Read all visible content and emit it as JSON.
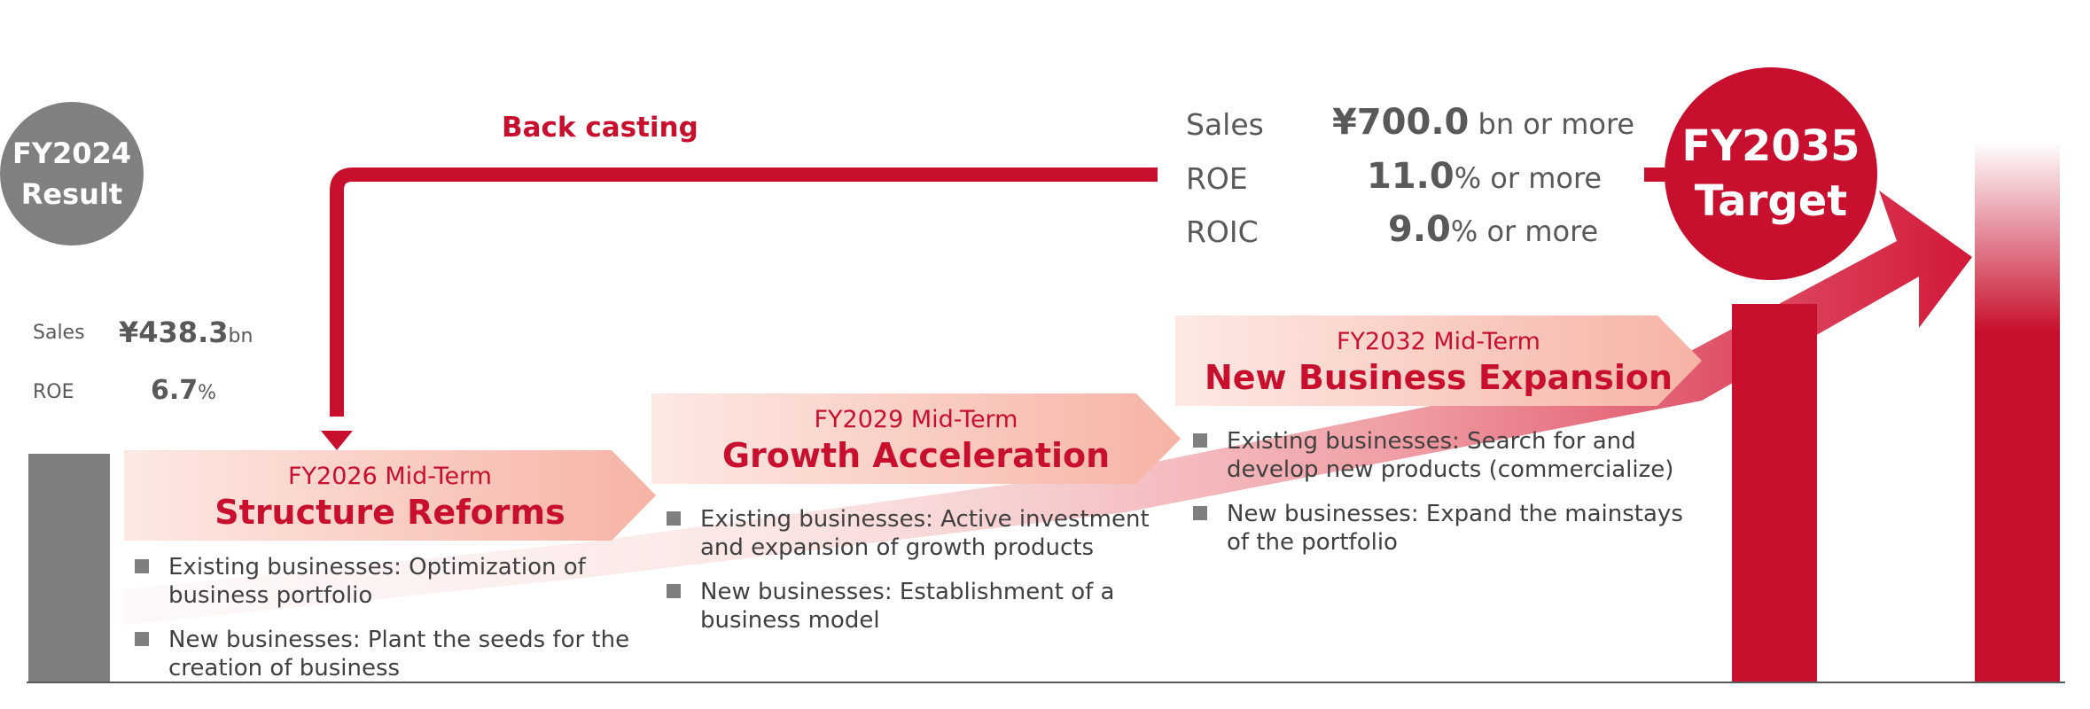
{
  "colors": {
    "brand_red": "#c8102e",
    "gray": "#7f7f7f",
    "text_gray": "#595959"
  },
  "back_casting_label": "Back casting",
  "start": {
    "circle_line1": "FY2024",
    "circle_line2": "Result",
    "sales_label": "Sales",
    "sales_value": "¥438.3",
    "sales_unit": "bn",
    "roe_label": "ROE",
    "roe_value": "6.7",
    "roe_unit": "%"
  },
  "target": {
    "circle_line1": "FY2035",
    "circle_line2": "Target",
    "metrics": [
      {
        "label": "Sales",
        "value": "¥700.0",
        "unit": " bn or more"
      },
      {
        "label": "ROE",
        "value": "11.0",
        "unit": "% or more"
      },
      {
        "label": "ROIC",
        "value": "9.0",
        "unit": "% or more"
      }
    ]
  },
  "phases": [
    {
      "subtitle": "FY2026 Mid-Term",
      "title": "Structure Reforms",
      "bullets": [
        "Existing businesses: Optimization of business portfolio",
        "New businesses: Plant the seeds for the creation of business"
      ]
    },
    {
      "subtitle": "FY2029 Mid-Term",
      "title": "Growth Acceleration",
      "bullets": [
        "Existing businesses: Active investment and expansion of growth products",
        "New businesses: Establishment of a business model"
      ]
    },
    {
      "subtitle": "FY2032 Mid-Term",
      "title": "New Business Expansion",
      "bullets": [
        "Existing businesses: Search for and develop new products (commercialize)",
        "New businesses: Expand the mainstays of the portfolio"
      ]
    }
  ]
}
